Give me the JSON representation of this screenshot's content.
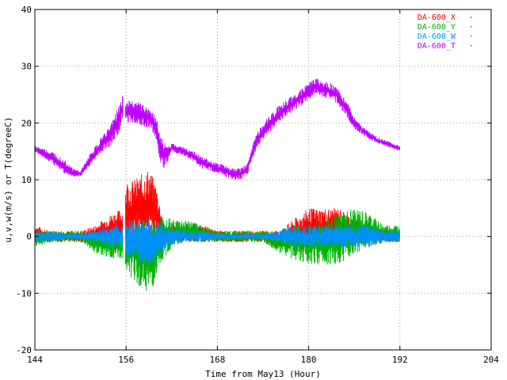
{
  "chart_data": {
    "type": "scatter",
    "title": "",
    "xlabel": "Time from May13 (Hour)",
    "ylabel": "u,v,w(m/s) or T(degreeC)",
    "xlim": [
      144,
      204
    ],
    "ylim": [
      -20,
      40
    ],
    "x_ticks": [
      144,
      156,
      168,
      180,
      192,
      204
    ],
    "y_ticks": [
      -20,
      -10,
      0,
      10,
      20,
      30,
      40
    ],
    "grid": true,
    "legend_position": "top-right",
    "series": [
      {
        "name": "DA-600_X",
        "color": "#ff0000",
        "x": [
          144,
          146,
          148,
          150,
          152,
          154,
          155.5,
          156,
          157,
          158,
          159,
          160,
          161,
          162,
          164,
          166,
          168,
          170,
          172,
          174,
          176,
          178,
          180,
          182,
          184,
          186,
          188,
          190,
          192
        ],
        "y_max": [
          2,
          1,
          1,
          1,
          2,
          4,
          5,
          10,
          10,
          11,
          12,
          9,
          2,
          2,
          2,
          2,
          1,
          1,
          1,
          1,
          1,
          3,
          5,
          5,
          5,
          3,
          2,
          1,
          1
        ],
        "y_min": [
          -1,
          -1,
          -1,
          -1,
          -1,
          -1,
          -2,
          -2,
          -1,
          -1,
          -1,
          -1,
          -1,
          -1,
          -1,
          -1,
          -1,
          -1,
          -1,
          -1,
          -2,
          -2,
          -2,
          -2,
          -1,
          -1,
          -1,
          -1,
          -1
        ]
      },
      {
        "name": "DA-600_Y",
        "color": "#00b000",
        "x": [
          144,
          146,
          148,
          150,
          152,
          154,
          155.5,
          156,
          157,
          158,
          159,
          160,
          161,
          162,
          164,
          166,
          168,
          170,
          172,
          174,
          176,
          178,
          180,
          182,
          184,
          186,
          188,
          190,
          192
        ],
        "y_max": [
          1,
          1,
          1,
          1,
          1,
          1,
          1,
          2,
          3,
          3,
          3,
          3,
          4,
          3,
          3,
          2,
          1,
          1,
          1,
          1,
          1,
          2,
          2,
          3,
          4,
          5,
          4,
          2,
          2
        ],
        "y_min": [
          -2,
          -1,
          -1,
          -1,
          -3,
          -4,
          -4,
          -7,
          -8,
          -9,
          -10,
          -8,
          -4,
          -2,
          -1,
          -1,
          -1,
          -1,
          -1,
          -1,
          -3,
          -4,
          -5,
          -5,
          -5,
          -3,
          -2,
          -1,
          -1
        ]
      },
      {
        "name": "DA-600_W",
        "color": "#0090ff",
        "x": [
          144,
          146,
          148,
          150,
          152,
          154,
          155.5,
          156,
          157,
          158,
          159,
          160,
          161,
          162,
          164,
          166,
          168,
          170,
          172,
          174,
          176,
          178,
          180,
          182,
          184,
          186,
          188,
          190,
          192
        ],
        "y_max": [
          1,
          1,
          0.5,
          0.5,
          1,
          2,
          2,
          3,
          3,
          3,
          3,
          3,
          2,
          1.5,
          1,
          1,
          0.5,
          0.5,
          0.5,
          0.5,
          1,
          2,
          2,
          2,
          2,
          2,
          2,
          1,
          1
        ],
        "y_min": [
          -1,
          -1,
          -0.5,
          -0.5,
          -1,
          -2,
          -2,
          -4,
          -4,
          -5,
          -5,
          -5,
          -3,
          -1.5,
          -1,
          -1,
          -0.5,
          -0.5,
          -0.5,
          -0.5,
          -1,
          -2,
          -2,
          -2,
          -2,
          -2,
          -2,
          -1,
          -1
        ]
      },
      {
        "name": "DA-600_T",
        "color": "#c000ff",
        "x": [
          144,
          145,
          146,
          147,
          148,
          149,
          150,
          151,
          152,
          153,
          154,
          155,
          155.5,
          156,
          157,
          158,
          159,
          160,
          160.5,
          161,
          161.5,
          162,
          163,
          164,
          165,
          166,
          167,
          168,
          169,
          170,
          171,
          172,
          173,
          174,
          175,
          176,
          177,
          178,
          179,
          180,
          181,
          182,
          183,
          184,
          185,
          186,
          187,
          188,
          189,
          190,
          191,
          192
        ],
        "y_max": [
          16,
          15.5,
          15,
          14.5,
          13.5,
          12,
          11.5,
          14,
          16,
          18,
          20,
          23,
          25,
          24,
          24,
          23.5,
          23,
          21,
          18,
          16.5,
          16,
          16.5,
          16,
          15.5,
          15,
          14,
          13.5,
          13,
          12.5,
          12,
          12,
          13,
          18,
          20,
          21.5,
          23,
          24,
          25,
          26,
          27,
          28,
          27.5,
          27,
          26,
          24,
          21,
          19.5,
          18.5,
          17.5,
          17,
          16.5,
          16
        ],
        "y_min": [
          15,
          14,
          13,
          12,
          11,
          10.5,
          10.5,
          12,
          14,
          15,
          16,
          18,
          20,
          20,
          20,
          19.5,
          19,
          17,
          13,
          12,
          13,
          15,
          14.5,
          14,
          13,
          12,
          11.5,
          11,
          10.5,
          10,
          10,
          11,
          15,
          17,
          18.5,
          20,
          21,
          22,
          23,
          24,
          25,
          24.5,
          24,
          23,
          21,
          19,
          18,
          17,
          16.5,
          16,
          15.5,
          15
        ]
      }
    ]
  }
}
